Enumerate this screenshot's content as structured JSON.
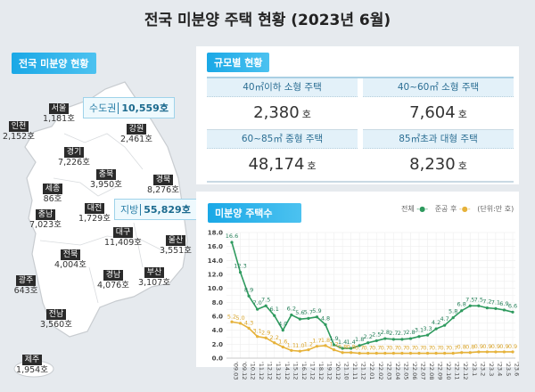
{
  "title": "전국 미분양 주택 현황  (2023년 6월)",
  "map": {
    "badge": "전국 미분양 현황",
    "capital": {
      "label": "수도권",
      "value": "10,559호"
    },
    "local": {
      "label": "지방",
      "value": "55,829호"
    },
    "regions": [
      {
        "name": "서울",
        "value": "1,181호"
      },
      {
        "name": "인천",
        "value": "2,152호"
      },
      {
        "name": "강원",
        "value": "2,461호"
      },
      {
        "name": "경기",
        "value": "7,226호"
      },
      {
        "name": "충북",
        "value": "3,950호"
      },
      {
        "name": "경북",
        "value": "8,276호"
      },
      {
        "name": "세종",
        "value": "86호"
      },
      {
        "name": "대전",
        "value": "1,729호"
      },
      {
        "name": "충남",
        "value": "7,023호"
      },
      {
        "name": "대구",
        "value": "11,409호"
      },
      {
        "name": "울산",
        "value": "3,551호"
      },
      {
        "name": "전북",
        "value": "4,004호"
      },
      {
        "name": "경남",
        "value": "4,076호"
      },
      {
        "name": "부산",
        "value": "3,107호"
      },
      {
        "name": "광주",
        "value": "643호"
      },
      {
        "name": "전남",
        "value": "3,560호"
      },
      {
        "name": "제주",
        "value": "1,954호"
      }
    ]
  },
  "size": {
    "badge": "규모별 현황",
    "items": [
      {
        "label": "40㎡이하 소형 주택",
        "value": "2,380",
        "unit": "호"
      },
      {
        "label": "40~60㎡ 소형 주택",
        "value": "7,604",
        "unit": "호"
      },
      {
        "label": "60~85㎡ 중형 주택",
        "value": "48,174",
        "unit": "호"
      },
      {
        "label": "85㎡초과 대형 주택",
        "value": "8,230",
        "unit": "호"
      }
    ]
  },
  "chart_badge": "미분양 주택수",
  "legend": {
    "total": "전체",
    "completed": "준공 후",
    "unit": "(단위:만 호)"
  },
  "chart_data": {
    "type": "line",
    "ylim": [
      0,
      18
    ],
    "yticks": [
      "0.0",
      "2.0",
      "4.0",
      "6.0",
      "8.0",
      "10.0",
      "12.0",
      "14.0",
      "16.0",
      "18.0"
    ],
    "grid": true,
    "legend_placement": "top-right",
    "colors": {
      "total": "#2e9a5e",
      "completed": "#e6b23a"
    },
    "categories": [
      "'09.03",
      "'09.12",
      "'10.12",
      "'11.12",
      "'12.12",
      "'13.12",
      "'14.12",
      "'15.12",
      "'16.12",
      "'17.12",
      "'18.12",
      "'19.12",
      "'20.12",
      "'21.10",
      "'21.11",
      "'21.12",
      "'22.01",
      "'22.02",
      "'22.03",
      "'22.04",
      "'22.05",
      "'22.06",
      "'22.07",
      "'22.08",
      "'22.09",
      "'22.10",
      "'22.11",
      "'22.12",
      "'23.1",
      "'23.2",
      "'23.3",
      "'23.4",
      "'23.5",
      "'23.6"
    ],
    "series": [
      {
        "name": "전체",
        "values": [
          16.6,
          12.3,
          8.9,
          7.0,
          7.5,
          6.1,
          4.0,
          6.2,
          5.6,
          5.7,
          5.9,
          4.8,
          1.9,
          1.4,
          1.4,
          1.8,
          2.2,
          2.5,
          2.8,
          2.7,
          2.7,
          2.8,
          3.1,
          3.3,
          4.2,
          4.7,
          5.8,
          6.8,
          7.5,
          7.5,
          7.2,
          7.1,
          6.9,
          6.6
        ]
      },
      {
        "name": "준공 후",
        "values": [
          5.2,
          5.0,
          4.3,
          3.1,
          2.9,
          2.2,
          1.6,
          1.1,
          1.0,
          1.2,
          1.7,
          1.8,
          1.2,
          0.8,
          0.8,
          0.7,
          0.7,
          0.7,
          0.7,
          0.7,
          0.7,
          0.7,
          0.7,
          0.7,
          0.7,
          0.7,
          0.7,
          0.8,
          0.8,
          0.9,
          0.9,
          0.9,
          0.9,
          0.9
        ]
      }
    ]
  }
}
